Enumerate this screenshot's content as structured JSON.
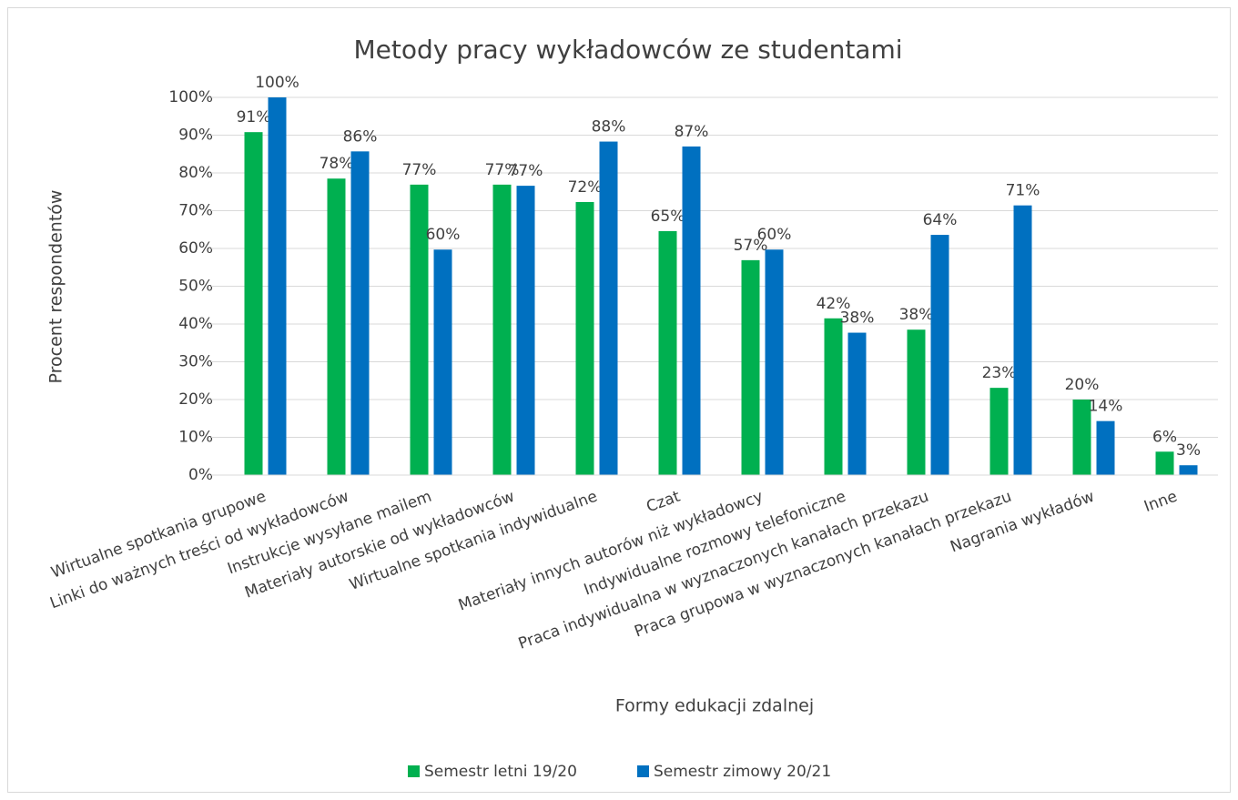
{
  "chart_data": {
    "type": "bar",
    "title": "Metody pracy wykładowców ze studentami",
    "x_label": "Formy edukacji zdalnej",
    "y_label": "Procent respondentów",
    "categories": [
      "Wirtualne spotkania grupowe",
      "Linki do ważnych treści od wykładowców",
      "Instrukcje wysyłane mailem",
      "Materiały autorskie od wykładowców",
      "Wirtualne spotkania indywidualne",
      "Czat",
      "Materiały innych autorów niż wykładowcy",
      "Indywidualne rozmowy telefoniczne",
      "Praca indywidualna w wyznaczonych kanałach przekazu",
      "Praca grupowa w wyznaczonych kanałach przekazu",
      "Nagrania wykładów",
      "Inne"
    ],
    "series": [
      {
        "name": "Semestr letni 19/20",
        "color": "#00b050",
        "values": [
          90.8,
          78.5,
          76.9,
          76.9,
          72.3,
          64.6,
          56.9,
          41.5,
          38.5,
          23.1,
          20,
          6.2
        ],
        "value_labels": [
          "91%",
          "78%",
          "77%",
          "77%",
          "72%",
          "65%",
          "57%",
          "42%",
          "38%",
          "23%",
          "20%",
          "6%"
        ]
      },
      {
        "name": "Semestr zimowy 20/21",
        "color": "#0070c0",
        "values": [
          100,
          85.7,
          59.7,
          76.6,
          88.3,
          87,
          59.7,
          37.7,
          63.6,
          71.4,
          14.3,
          2.6
        ],
        "value_labels": [
          "100%",
          "86%",
          "60%",
          "77%",
          "88%",
          "87%",
          "60%",
          "38%",
          "64%",
          "71%",
          "14%",
          "3%"
        ]
      }
    ],
    "ylim": [
      0,
      100
    ],
    "yticks": [
      {
        "value": 0,
        "label": "0%"
      },
      {
        "value": 10,
        "label": "10%"
      },
      {
        "value": 20,
        "label": "20%"
      },
      {
        "value": 30,
        "label": "30%"
      },
      {
        "value": 40,
        "label": "40%"
      },
      {
        "value": 50,
        "label": "50%"
      },
      {
        "value": 60,
        "label": "60%"
      },
      {
        "value": 70,
        "label": "70%"
      },
      {
        "value": 80,
        "label": "80%"
      },
      {
        "value": 90,
        "label": "90%"
      },
      {
        "value": 100,
        "label": "100%"
      }
    ],
    "grid": true,
    "legend": "bottom"
  }
}
